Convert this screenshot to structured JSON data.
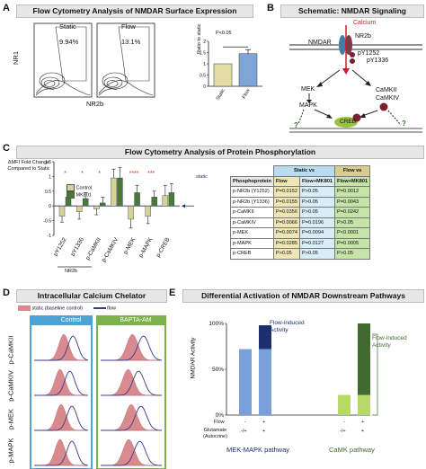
{
  "panelA": {
    "letter": "A",
    "title": "Flow Cytometry Analysis of NMDAR Surface Expression",
    "plot_labels": [
      "Static",
      "Flow"
    ],
    "percentages": [
      "9.94%",
      "13.1%"
    ],
    "y_axis": "NR1",
    "x_axis": "NR2b",
    "bar": {
      "significance": "P<0.05",
      "y_ticks": [
        "0",
        "0.5",
        "1",
        "1.5",
        "2"
      ]
    }
  },
  "panelB": {
    "letter": "B",
    "title": "Schematic: NMDAR Signaling",
    "labels": {
      "calcium": "Calcium",
      "nmdar": "NMDAR",
      "nr2b": "NR2b",
      "py1252": "pY1252",
      "py1336": "pY1336",
      "mek": "MEK",
      "mapk": "MAPK",
      "camkii": "CaMKII",
      "camkiv": "CaMKIV",
      "creb": "CREB",
      "q": "?"
    }
  },
  "panelC": {
    "letter": "C",
    "title": "Flow Cytometry Analysis of Protein Phosphorylation",
    "y_axis": [
      "ΔMFI Fold Change",
      "Compared to Static"
    ],
    "y_ticks": [
      "1.5",
      "1",
      "0.5",
      "0",
      "-0.5",
      "-1"
    ],
    "static_label": "static",
    "legend": [
      "Control",
      "MK801"
    ],
    "categories": [
      "pY1252",
      "pY1336",
      "p-CaMKII",
      "p-CaMKIV",
      "p-MEK",
      "p-MAPK",
      "p-CREB"
    ],
    "nr2b_label": "NR2b",
    "stars": [
      "*",
      "*",
      "*",
      "",
      "****",
      "***",
      ""
    ],
    "table": {
      "header_static": "Static vs",
      "header_flow": "Flow vs",
      "col_heads": [
        "Phosphoprotein",
        "Flow",
        "Flow+MK801",
        "Flow+MK801"
      ],
      "rows": [
        [
          "p-NR2b (Y1252)",
          "P=0.0152",
          "P>0.05",
          "P=0.0012"
        ],
        [
          "p-NR2b (Y1336)",
          "P=0.0155",
          "P>0.05",
          "P=0.0043"
        ],
        [
          "p-CaMKII",
          "P=0.0356",
          "P>0.05",
          "P=0.0242"
        ],
        [
          "p-CaMKIV",
          "P=0.0066",
          "P=0.0196",
          "P>0.05"
        ],
        [
          "p-MEK",
          "P=0.0074",
          "P=0.0094",
          "P<0.0001"
        ],
        [
          "p-MAPK",
          "P=0.0285",
          "P=0.0127",
          "P=0.0005"
        ],
        [
          "p-CREB",
          "P>0.05",
          "P>0.05",
          "P>0.05"
        ]
      ]
    }
  },
  "panelD": {
    "letter": "D",
    "title": "Intracellular Calcium Chelator",
    "legend_static": "static (baseline control)",
    "legend_flow": "flow",
    "col_headers": [
      "Control",
      "BAPTA-AM"
    ],
    "rows": [
      "p-CaMKII",
      "p-CaMKIV",
      "p-MEK",
      "p-MAPK"
    ]
  },
  "panelE": {
    "letter": "E",
    "title": "Differential Activation of NMDAR Downstream Pathways",
    "y_axis": "NMDAR Activity",
    "y_ticks": [
      "100%",
      "50%",
      "0%"
    ],
    "flow_label": "Flow",
    "glutamate_label": [
      "Glutamate",
      "(Autocrine)"
    ],
    "flow_signs": [
      "-",
      "+",
      "-",
      "+"
    ],
    "glut_signs": [
      "-/+",
      "+",
      "-/+",
      "+"
    ],
    "annot1": [
      "Flow-induced",
      "Activity"
    ],
    "annot2": [
      "Flow-induced",
      "Activity"
    ],
    "pathway1": "MEK-MAPK  pathway",
    "pathway2": "CaMK pathway"
  },
  "chart_data": [
    {
      "type": "bar",
      "panel": "A",
      "categories": [
        "Static",
        "Flow"
      ],
      "values": [
        1.0,
        1.45
      ],
      "errors": [
        0,
        0.18
      ],
      "ylabel": "Ratio to static",
      "ylim": [
        0,
        2
      ],
      "colors": [
        "#e3dca4",
        "#7fa5d6"
      ]
    },
    {
      "type": "bar",
      "panel": "C",
      "categories": [
        "pY1252",
        "pY1336",
        "p-CaMKII",
        "p-CaMKIV",
        "p-MEK",
        "p-MAPK",
        "p-CREB"
      ],
      "series": [
        {
          "name": "Control",
          "values": [
            -0.35,
            -0.2,
            -0.1,
            0.95,
            -0.45,
            -0.35,
            0.35
          ],
          "errors": [
            0.2,
            0.25,
            0.2,
            0.3,
            0.3,
            0.25,
            0.35
          ],
          "color": "#d6d39a"
        },
        {
          "name": "MK801",
          "values": [
            0.3,
            0.25,
            0.1,
            0.95,
            0.45,
            0.3,
            0.45
          ],
          "errors": [
            0.2,
            0.2,
            0.2,
            0.35,
            0.25,
            0.2,
            0.3
          ],
          "color": "#4a7a3a"
        }
      ],
      "ylim": [
        -1,
        1.5
      ]
    },
    {
      "type": "bar",
      "panel": "E",
      "groups": [
        "MEK-MAPK  pathway",
        "CaMK pathway"
      ],
      "bars": [
        {
          "group": 0,
          "base": 72,
          "extra": 0
        },
        {
          "group": 0,
          "base": 72,
          "extra": 26
        },
        {
          "group": 1,
          "base": 22,
          "extra": 0
        },
        {
          "group": 1,
          "base": 22,
          "extra": 78
        }
      ],
      "ylim": [
        0,
        100
      ],
      "colors": {
        "mek_base": "#7b9fd8",
        "mek_extra": "#1d2f6e",
        "camk_base": "#b7d968",
        "camk_extra": "#3f6b2e"
      }
    }
  ]
}
